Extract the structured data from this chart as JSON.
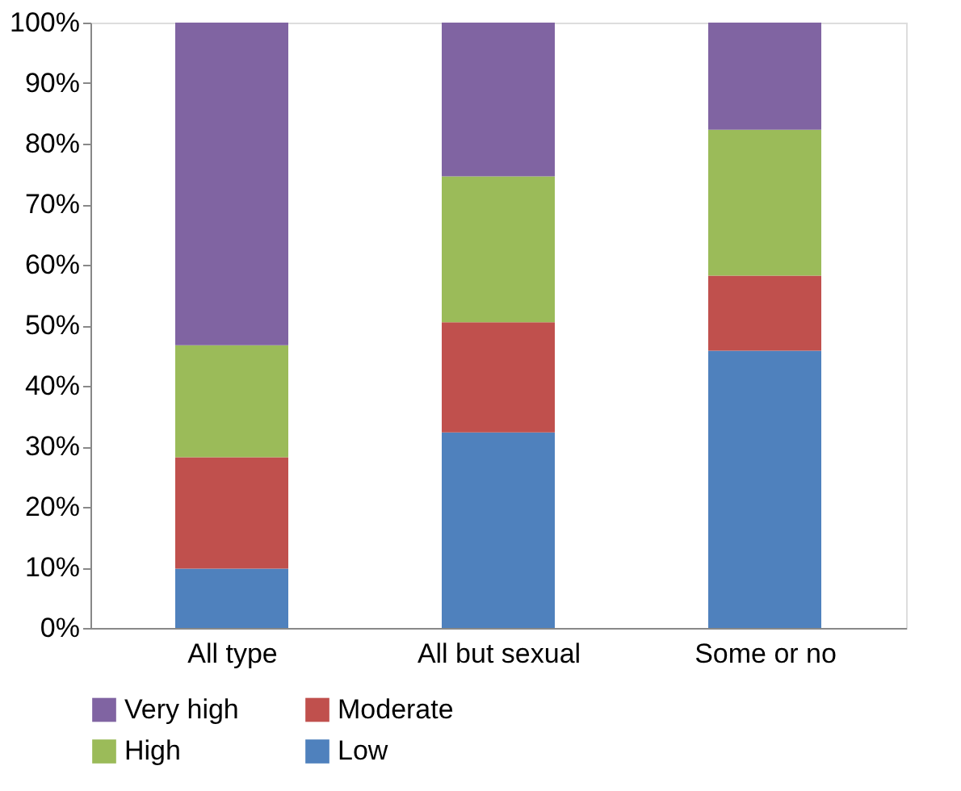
{
  "chart_data": {
    "type": "bar",
    "stacked": true,
    "categories": [
      "All type",
      "All but sexual",
      "Some or no"
    ],
    "series": [
      {
        "name": "Low",
        "color": "#4f81bd",
        "values": [
          9.8,
          32.3,
          45.8
        ]
      },
      {
        "name": "Moderate",
        "color": "#c0504d",
        "values": [
          18.4,
          18.2,
          12.4
        ]
      },
      {
        "name": "High",
        "color": "#9bbb59",
        "values": [
          18.5,
          24.1,
          24.1
        ]
      },
      {
        "name": "Very high",
        "color": "#8064a2",
        "values": [
          53.3,
          25.4,
          17.7
        ]
      }
    ],
    "ylim": [
      0,
      100
    ],
    "yticks": [
      {
        "value": 0,
        "label": "0%"
      },
      {
        "value": 10,
        "label": "10%"
      },
      {
        "value": 20,
        "label": "20%"
      },
      {
        "value": 30,
        "label": "30%"
      },
      {
        "value": 40,
        "label": "40%"
      },
      {
        "value": 50,
        "label": "50%"
      },
      {
        "value": 60,
        "label": "60%"
      },
      {
        "value": 70,
        "label": "70%"
      },
      {
        "value": 80,
        "label": "80%"
      },
      {
        "value": 90,
        "label": "90%"
      },
      {
        "value": 100,
        "label": "100%"
      }
    ],
    "grid": false,
    "legend": "bottom"
  }
}
